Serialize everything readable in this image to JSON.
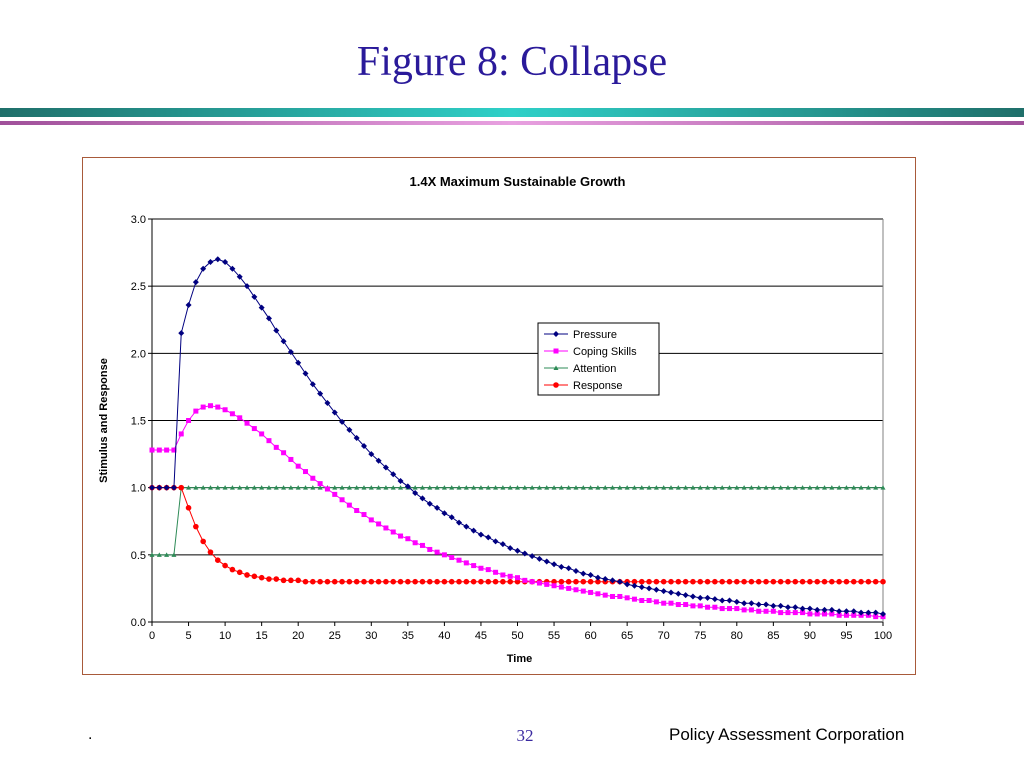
{
  "slide": {
    "title": "Figure 8: Collapse",
    "footer_left": ".",
    "page_number": "32",
    "organization": "Policy Assessment Corporation",
    "colors": {
      "title": "#2a1a9a",
      "rule_top": "#1f6f6a",
      "rule_mid": "#2fd0c8",
      "rule_bottom": "#c060b0",
      "frame": "#a85a3a"
    }
  },
  "chart_data": {
    "type": "line",
    "title": "1.4X Maximum Sustainable Growth",
    "xlabel": "Time",
    "ylabel": "Stimulus and Response",
    "xlim": [
      0,
      100
    ],
    "ylim": [
      0,
      3.0
    ],
    "x_ticks": [
      "0",
      "5",
      "10",
      "15",
      "20",
      "25",
      "30",
      "35",
      "40",
      "45",
      "50",
      "55",
      "60",
      "65",
      "70",
      "75",
      "80",
      "85",
      "90",
      "95",
      "100"
    ],
    "y_ticks": [
      "0.0",
      "0.5",
      "1.0",
      "1.5",
      "2.0",
      "2.5",
      "3.0"
    ],
    "grid": "horizontal",
    "legend_position": "upper-right",
    "x": [
      0,
      1,
      2,
      3,
      4,
      5,
      6,
      7,
      8,
      9,
      10,
      11,
      12,
      13,
      14,
      15,
      16,
      17,
      18,
      19,
      20,
      21,
      22,
      23,
      24,
      25,
      26,
      27,
      28,
      29,
      30,
      31,
      32,
      33,
      34,
      35,
      36,
      37,
      38,
      39,
      40,
      41,
      42,
      43,
      44,
      45,
      46,
      47,
      48,
      49,
      50,
      51,
      52,
      53,
      54,
      55,
      56,
      57,
      58,
      59,
      60,
      61,
      62,
      63,
      64,
      65,
      66,
      67,
      68,
      69,
      70,
      71,
      72,
      73,
      74,
      75,
      76,
      77,
      78,
      79,
      80,
      81,
      82,
      83,
      84,
      85,
      86,
      87,
      88,
      89,
      90,
      91,
      92,
      93,
      94,
      95,
      96,
      97,
      98,
      99,
      100
    ],
    "series": [
      {
        "name": "Pressure",
        "color": "#000080",
        "marker": "diamond",
        "values": [
          1.0,
          1.0,
          1.0,
          1.0,
          2.15,
          2.36,
          2.53,
          2.63,
          2.68,
          2.7,
          2.68,
          2.63,
          2.57,
          2.5,
          2.42,
          2.34,
          2.26,
          2.17,
          2.09,
          2.01,
          1.93,
          1.85,
          1.77,
          1.7,
          1.63,
          1.56,
          1.49,
          1.43,
          1.37,
          1.31,
          1.25,
          1.2,
          1.15,
          1.1,
          1.05,
          1.01,
          0.96,
          0.92,
          0.88,
          0.85,
          0.81,
          0.78,
          0.74,
          0.71,
          0.68,
          0.65,
          0.63,
          0.6,
          0.58,
          0.55,
          0.53,
          0.51,
          0.49,
          0.47,
          0.45,
          0.43,
          0.41,
          0.4,
          0.38,
          0.36,
          0.35,
          0.33,
          0.32,
          0.31,
          0.3,
          0.28,
          0.27,
          0.26,
          0.25,
          0.24,
          0.23,
          0.22,
          0.21,
          0.2,
          0.19,
          0.18,
          0.18,
          0.17,
          0.16,
          0.16,
          0.15,
          0.14,
          0.14,
          0.13,
          0.13,
          0.12,
          0.12,
          0.11,
          0.11,
          0.1,
          0.1,
          0.09,
          0.09,
          0.09,
          0.08,
          0.08,
          0.08,
          0.07,
          0.07,
          0.07,
          0.06
        ]
      },
      {
        "name": "Coping Skills",
        "color": "#ff00ff",
        "marker": "square",
        "values": [
          1.28,
          1.28,
          1.28,
          1.28,
          1.4,
          1.5,
          1.57,
          1.6,
          1.61,
          1.6,
          1.58,
          1.55,
          1.52,
          1.48,
          1.44,
          1.4,
          1.35,
          1.3,
          1.26,
          1.21,
          1.16,
          1.12,
          1.07,
          1.03,
          0.99,
          0.95,
          0.91,
          0.87,
          0.83,
          0.8,
          0.76,
          0.73,
          0.7,
          0.67,
          0.64,
          0.62,
          0.59,
          0.57,
          0.54,
          0.52,
          0.5,
          0.48,
          0.46,
          0.44,
          0.42,
          0.4,
          0.39,
          0.37,
          0.35,
          0.34,
          0.33,
          0.31,
          0.3,
          0.29,
          0.28,
          0.27,
          0.26,
          0.25,
          0.24,
          0.23,
          0.22,
          0.21,
          0.2,
          0.19,
          0.19,
          0.18,
          0.17,
          0.16,
          0.16,
          0.15,
          0.14,
          0.14,
          0.13,
          0.13,
          0.12,
          0.12,
          0.11,
          0.11,
          0.1,
          0.1,
          0.1,
          0.09,
          0.09,
          0.08,
          0.08,
          0.08,
          0.07,
          0.07,
          0.07,
          0.07,
          0.06,
          0.06,
          0.06,
          0.06,
          0.05,
          0.05,
          0.05,
          0.05,
          0.05,
          0.04,
          0.04
        ]
      },
      {
        "name": "Attention",
        "color": "#2e8b57",
        "marker": "triangle",
        "values": [
          0.5,
          0.5,
          0.5,
          0.5,
          1.0,
          1.0,
          1.0,
          1.0,
          1.0,
          1.0,
          1.0,
          1.0,
          1.0,
          1.0,
          1.0,
          1.0,
          1.0,
          1.0,
          1.0,
          1.0,
          1.0,
          1.0,
          1.0,
          1.0,
          1.0,
          1.0,
          1.0,
          1.0,
          1.0,
          1.0,
          1.0,
          1.0,
          1.0,
          1.0,
          1.0,
          1.0,
          1.0,
          1.0,
          1.0,
          1.0,
          1.0,
          1.0,
          1.0,
          1.0,
          1.0,
          1.0,
          1.0,
          1.0,
          1.0,
          1.0,
          1.0,
          1.0,
          1.0,
          1.0,
          1.0,
          1.0,
          1.0,
          1.0,
          1.0,
          1.0,
          1.0,
          1.0,
          1.0,
          1.0,
          1.0,
          1.0,
          1.0,
          1.0,
          1.0,
          1.0,
          1.0,
          1.0,
          1.0,
          1.0,
          1.0,
          1.0,
          1.0,
          1.0,
          1.0,
          1.0,
          1.0,
          1.0,
          1.0,
          1.0,
          1.0,
          1.0,
          1.0,
          1.0,
          1.0,
          1.0,
          1.0,
          1.0,
          1.0,
          1.0,
          1.0,
          1.0,
          1.0,
          1.0,
          1.0,
          1.0,
          1.0
        ]
      },
      {
        "name": "Response",
        "color": "#ff0000",
        "marker": "circle",
        "values": [
          1.0,
          1.0,
          1.0,
          1.0,
          1.0,
          0.85,
          0.71,
          0.6,
          0.52,
          0.46,
          0.42,
          0.39,
          0.37,
          0.35,
          0.34,
          0.33,
          0.32,
          0.32,
          0.31,
          0.31,
          0.31,
          0.3,
          0.3,
          0.3,
          0.3,
          0.3,
          0.3,
          0.3,
          0.3,
          0.3,
          0.3,
          0.3,
          0.3,
          0.3,
          0.3,
          0.3,
          0.3,
          0.3,
          0.3,
          0.3,
          0.3,
          0.3,
          0.3,
          0.3,
          0.3,
          0.3,
          0.3,
          0.3,
          0.3,
          0.3,
          0.3,
          0.3,
          0.3,
          0.3,
          0.3,
          0.3,
          0.3,
          0.3,
          0.3,
          0.3,
          0.3,
          0.3,
          0.3,
          0.3,
          0.3,
          0.3,
          0.3,
          0.3,
          0.3,
          0.3,
          0.3,
          0.3,
          0.3,
          0.3,
          0.3,
          0.3,
          0.3,
          0.3,
          0.3,
          0.3,
          0.3,
          0.3,
          0.3,
          0.3,
          0.3,
          0.3,
          0.3,
          0.3,
          0.3,
          0.3,
          0.3,
          0.3,
          0.3,
          0.3,
          0.3,
          0.3,
          0.3,
          0.3,
          0.3,
          0.3,
          0.3
        ]
      }
    ]
  }
}
